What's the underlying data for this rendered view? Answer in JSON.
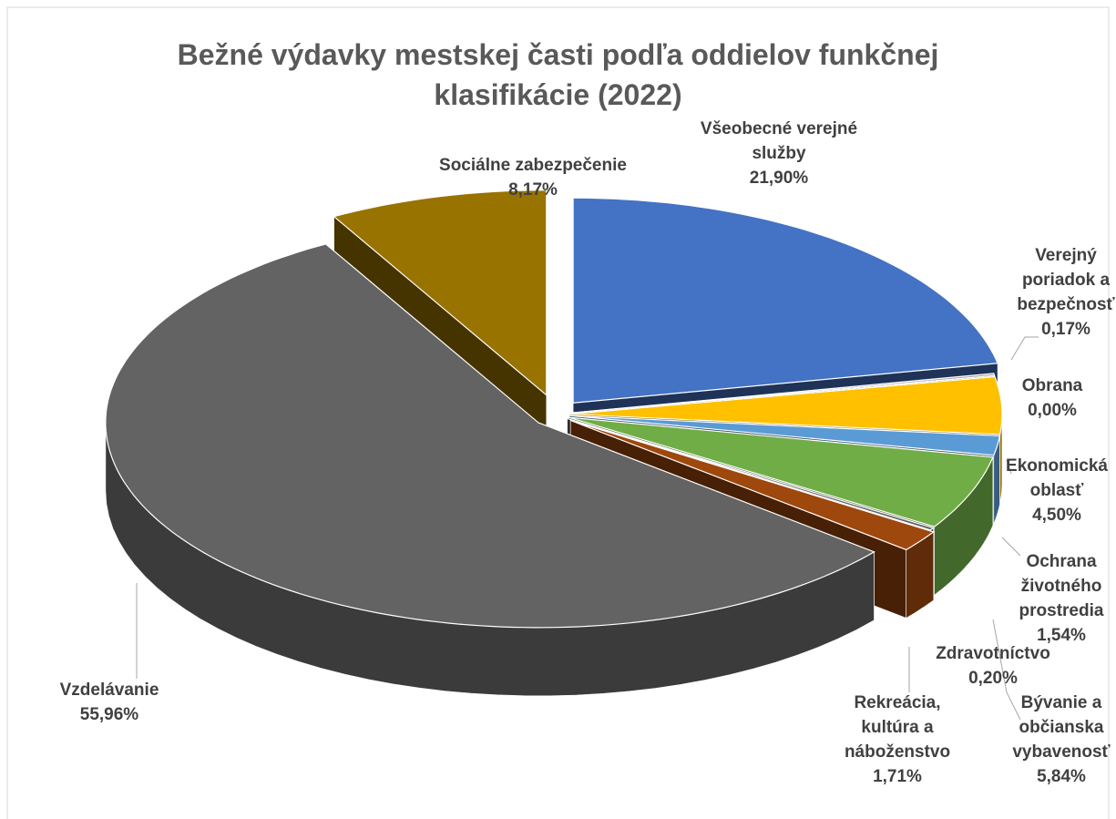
{
  "chart_data": {
    "type": "pie3d",
    "title": "Bežné výdavky mestskej časti podľa oddielov funkčnej klasifikácie  (2022)",
    "categories": [
      "Všeobecné verejné služby",
      "Verejný poriadok a bezpečnosť",
      "Obrana",
      "Ekonomická oblasť",
      "Ochrana životného prostredia",
      "Bývanie a občianska vybavenosť",
      "Zdravotníctvo",
      "Rekreácia, kultúra a náboženstvo",
      "Vzdelávanie",
      "Sociálne zabezpečenie"
    ],
    "values": [
      21.9,
      0.17,
      0.0,
      4.5,
      1.54,
      5.84,
      0.2,
      1.71,
      55.96,
      8.17
    ],
    "value_labels": [
      "21,90%",
      "0,17%",
      "0,00%",
      "4,50%",
      "1,54%",
      "5,84%",
      "0,20%",
      "1,71%",
      "55,96%",
      "8,17%"
    ],
    "colors": [
      "#4472c4",
      "#a5a5a5",
      "#264478",
      "#ffc000",
      "#5b9bd5",
      "#70ad47",
      "#636363",
      "#9e480e",
      "#636363",
      "#997300"
    ]
  }
}
